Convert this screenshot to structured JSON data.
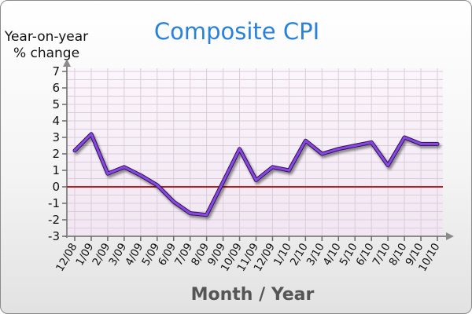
{
  "chart_data": {
    "type": "line",
    "title": "Composite CPI",
    "ylabel": "Year-on-year % change",
    "ylabel_lines": [
      "Year-on-year",
      "% change"
    ],
    "xlabel": "Month / Year",
    "categories": [
      "12/08",
      "1/09",
      "2/09",
      "3/09",
      "4/09",
      "5/09",
      "6/09",
      "7/09",
      "8/09",
      "9/09",
      "10/09",
      "11/09",
      "12/09",
      "1/10",
      "2/10",
      "3/10",
      "4/10",
      "5/10",
      "6/10",
      "7/10",
      "8/10",
      "9/10",
      "10/10"
    ],
    "series": [
      {
        "values": [
          2.2,
          3.2,
          0.8,
          1.2,
          0.7,
          0.1,
          -0.9,
          -1.6,
          -1.7,
          0.3,
          2.3,
          0.4,
          1.2,
          1.0,
          2.8,
          2.0,
          2.3,
          2.5,
          2.7,
          1.3,
          3.0,
          2.6,
          2.6
        ],
        "color": "#8b46e6"
      }
    ],
    "ylim": [
      -3,
      7
    ],
    "yticks": [
      -3,
      -2,
      -1,
      0,
      1,
      2,
      3,
      4,
      5,
      6,
      7
    ],
    "zero_line_color": "#b81c1c",
    "grid": true,
    "legend": "none"
  }
}
